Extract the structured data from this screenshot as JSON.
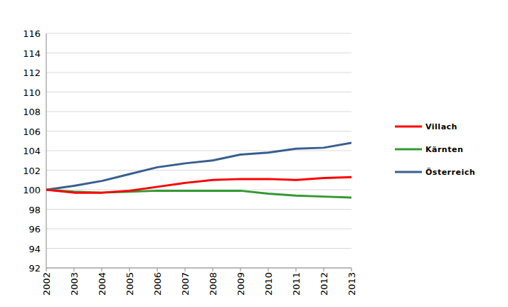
{
  "chart_data": {
    "type": "line",
    "categories": [
      "2002",
      "2003",
      "2004",
      "2005",
      "2006",
      "2007",
      "2008",
      "2009",
      "2010",
      "2011",
      "2012",
      "2013"
    ],
    "series": [
      {
        "name": "Villach",
        "color": "#ff0000",
        "values": [
          100,
          99.7,
          99.7,
          99.9,
          100.3,
          100.7,
          101.0,
          101.1,
          101.1,
          101.0,
          101.2,
          101.3
        ]
      },
      {
        "name": "Kärnten",
        "color": "#339933",
        "values": [
          100,
          99.8,
          99.7,
          99.8,
          99.9,
          99.9,
          99.9,
          99.9,
          99.6,
          99.4,
          99.3,
          99.2
        ]
      },
      {
        "name": "Österreich",
        "color": "#3a5f8f",
        "values": [
          100,
          100.4,
          100.9,
          101.6,
          102.3,
          102.7,
          103.0,
          103.6,
          103.8,
          104.2,
          104.3,
          104.8
        ]
      }
    ],
    "ylim": [
      92,
      116
    ],
    "yticks": [
      92,
      94,
      96,
      98,
      100,
      102,
      104,
      106,
      108,
      110,
      112,
      114,
      116
    ],
    "grid": true,
    "legend": "right"
  }
}
